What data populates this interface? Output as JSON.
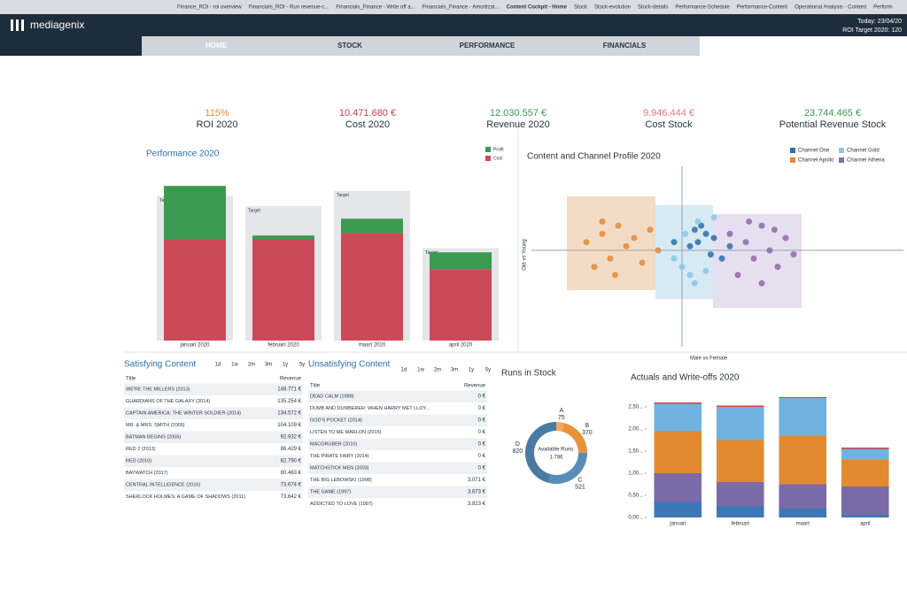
{
  "browser_tabs": [
    "Finance_ROI - roi overview",
    "Financials_ROI - Run revenue-c...",
    "Financials_Finance - Write off a...",
    "Financials_Finance - Amortizat...",
    "Content Cockpit - Home",
    "Stock",
    "Stock-evolution",
    "Stock-details",
    "Performance-Schedule",
    "Performance-Content",
    "Operational Analysis - Content",
    "Perform"
  ],
  "header": {
    "logo": "mediagenix",
    "today": "Today: 23/04/20",
    "roi_target": "ROI Target 2020: 120"
  },
  "nav": [
    "HOME",
    "STOCK",
    "PERFORMANCE",
    "FINANCIALS"
  ],
  "kpis": [
    {
      "value": "115%",
      "label": "ROI 2020",
      "color": "#e8923a"
    },
    {
      "value": "10.471.680 €",
      "label": "Cost 2020",
      "color": "#c8404a"
    },
    {
      "value": "12.030.557 €",
      "label": "Revenue 2020",
      "color": "#3a9a50"
    },
    {
      "value": "9.946.444 €",
      "label": "Cost Stock",
      "color": "#e07a80"
    },
    {
      "value": "23.744.465 €",
      "label": "Potential Revenue Stock",
      "color": "#3a9a50"
    }
  ],
  "chart_data": [
    {
      "type": "bar",
      "title": "Performance 2020",
      "categories": [
        "januari 2020",
        "februari 2020",
        "maart 2020",
        "april 2020"
      ],
      "series": [
        {
          "name": "Cost",
          "color": "#cc4a58",
          "values": [
            120,
            120,
            128,
            85
          ]
        },
        {
          "name": "Profit",
          "color": "#3a9a50",
          "values": [
            64,
            5,
            17,
            20
          ]
        }
      ],
      "target_label": "Target",
      "targets": [
        172,
        160,
        178,
        110
      ],
      "ylim": [
        0,
        200
      ]
    },
    {
      "type": "scatter",
      "title": "Content and Channel Profile 2020",
      "y_label": "Old vs Young",
      "x_label": "Male vs Female",
      "xlim": [
        -1,
        1
      ],
      "ylim": [
        -1,
        1
      ],
      "series": [
        {
          "name": "Channel One",
          "color": "#2f6fa8",
          "x": [
            0.1,
            0.15,
            0.05,
            0.2,
            0.25,
            -0.05,
            0.12,
            0.3,
            0.18,
            0.08
          ],
          "values": [
            0.1,
            0.2,
            0.05,
            0.15,
            -0.1,
            0.1,
            0.3,
            0.05,
            -0.05,
            0.25
          ]
        },
        {
          "name": "Channel Gold",
          "color": "#8cc5e3",
          "x": [
            0.0,
            0.05,
            0.1,
            -0.05,
            0.15,
            0.2,
            0.08,
            0.02
          ],
          "values": [
            -0.2,
            -0.3,
            0.35,
            -0.1,
            -0.25,
            0.4,
            -0.4,
            0.2
          ]
        },
        {
          "name": "Channel Apollo",
          "color": "#e08a3a",
          "x": [
            -0.6,
            -0.5,
            -0.45,
            -0.4,
            -0.35,
            -0.55,
            -0.3,
            -0.25,
            -0.2,
            -0.5,
            -0.42,
            -0.15
          ],
          "values": [
            0.1,
            0.2,
            -0.1,
            0.3,
            0.05,
            -0.2,
            0.15,
            -0.15,
            0.25,
            0.35,
            -0.3,
            0.0
          ]
        },
        {
          "name": "Channel Athena",
          "color": "#8e6aa8",
          "x": [
            0.3,
            0.4,
            0.45,
            0.5,
            0.55,
            0.6,
            0.35,
            0.65,
            0.5,
            0.42,
            0.58,
            0.7
          ],
          "values": [
            0.2,
            0.1,
            -0.1,
            0.3,
            0.0,
            -0.2,
            -0.3,
            0.15,
            -0.4,
            0.35,
            0.25,
            -0.05
          ]
        }
      ]
    },
    {
      "type": "pie",
      "title": "Runs in Stock",
      "categories": [
        "A",
        "B",
        "C",
        "D"
      ],
      "values": [
        75,
        370,
        521,
        820
      ],
      "colors": [
        "#f0a860",
        "#e8923a",
        "#5a8db5",
        "#4a7ba3"
      ],
      "center_text": [
        "Available Runs:",
        "1.786"
      ]
    },
    {
      "type": "stacked-bar",
      "title": "Actuals and Write-offs 2020",
      "categories": [
        "januari",
        "februari",
        "maart",
        "april"
      ],
      "series": [
        {
          "color": "#3c78b8",
          "values": [
            0.35,
            0.25,
            0.2,
            0.05
          ]
        },
        {
          "color": "#7a6aa8",
          "values": [
            0.65,
            0.55,
            0.55,
            0.65
          ]
        },
        {
          "color": "#e38a30",
          "values": [
            0.95,
            0.95,
            1.1,
            0.6
          ]
        },
        {
          "color": "#6fb4e0",
          "values": [
            0.62,
            0.75,
            0.85,
            0.25
          ]
        },
        {
          "color": "#d04040",
          "values": [
            0.03,
            0.03,
            0.02,
            0.03
          ]
        }
      ],
      "ylim": [
        0,
        2.8
      ],
      "yticks": [
        {
          "value": 0,
          "label": "0,00..."
        },
        {
          "value": 0.5,
          "label": "0,50..."
        },
        {
          "value": 1,
          "label": "1,00..."
        },
        {
          "value": 1.5,
          "label": "1,50..."
        },
        {
          "value": 2,
          "label": "2,00..."
        },
        {
          "value": 2.5,
          "label": "2,50..."
        }
      ]
    }
  ],
  "tables": [
    {
      "title": "Satisfying Content",
      "periods": [
        "1d",
        "1w",
        "2m",
        "3m",
        "1y",
        "5y"
      ],
      "columns": [
        "Title",
        "Revenue"
      ],
      "rows": [
        [
          "WE'RE THE MILLERS (2013)",
          "148.771 €"
        ],
        [
          "GUARDIANS OF THE GALAXY (2014)",
          "135.254 €"
        ],
        [
          "CAPTAIN AMERICA: THE WINTER SOLDIER (2014)",
          "134.572 €"
        ],
        [
          "MR. & MRS. SMITH (2005)",
          "104.109 €"
        ],
        [
          "BATMAN BEGINS (2005)",
          "92.932 €"
        ],
        [
          "RED 2 (2013)",
          "86.429 €"
        ],
        [
          "RED (2010)",
          "82.790 €"
        ],
        [
          "BAYWATCH (2017)",
          "80.463 €"
        ],
        [
          "CENTRAL INTELLIGENCE (2016)",
          "73.674 €"
        ],
        [
          "SHERLOCK HOLMES: A GAME OF SHADOWS (2011)",
          "73.642 €"
        ]
      ]
    },
    {
      "title": "Unsatisfying Content",
      "periods": [
        "1d",
        "1w",
        "2m",
        "3m",
        "1y",
        "5y"
      ],
      "columns": [
        "Title",
        "Revenue"
      ],
      "rows": [
        [
          "DEAD CALM (1989)",
          "0 €"
        ],
        [
          "DUMB AND DUMBERER: WHEN HARRY MET LLOY...",
          "0 €"
        ],
        [
          "GOD'S POCKET (2014)",
          "0 €"
        ],
        [
          "LISTEN TO ME MARLON (2015)",
          "0 €"
        ],
        [
          "MACGRUBER (2010)",
          "0 €"
        ],
        [
          "THE PIRATE FAIRY (2014)",
          "0 €"
        ],
        [
          "MATCHSTICK MEN (2003)",
          "0 €"
        ],
        [
          "THE BIG LEBOWSKI (1998)",
          "3.071 €"
        ],
        [
          "THE GAME (1997)",
          "3.673 €"
        ],
        [
          "ADDICTED TO LOVE (1997)",
          "3.823 €"
        ]
      ]
    }
  ]
}
